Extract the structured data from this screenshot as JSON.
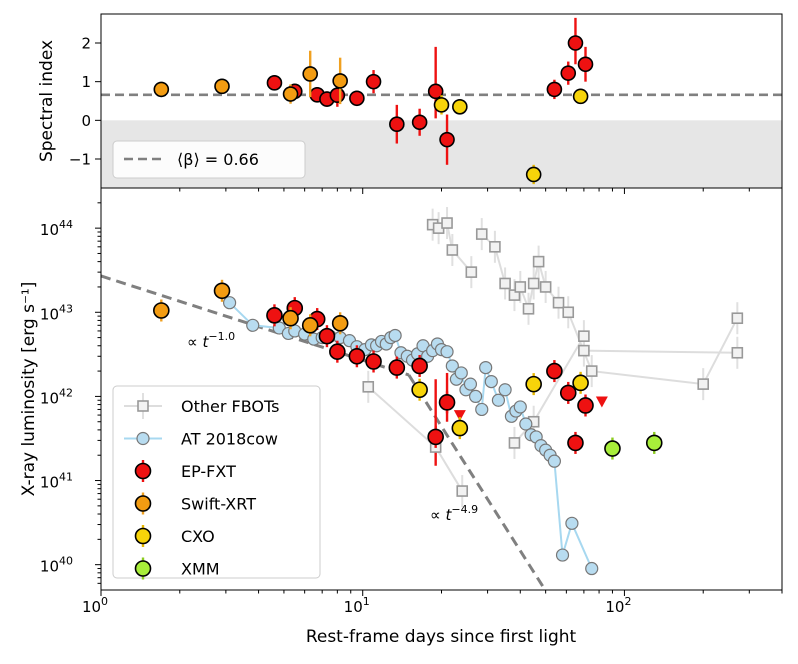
{
  "chart_data": [
    {
      "type": "scatter",
      "panel": "top",
      "ylabel": "Spectral index",
      "xscale": "log",
      "xlim": [
        1,
        400
      ],
      "ylim": [
        -1.75,
        2.75
      ],
      "yticks": [
        -1,
        0,
        1,
        2
      ],
      "ytick_labels": [
        "−1",
        "0",
        "1",
        "2"
      ],
      "shaded_region": {
        "from": -1.75,
        "to": 0,
        "color": "#e6e6e6"
      },
      "mean_line": {
        "value": 0.66,
        "label": "⟨β⟩ = 0.66",
        "color": "#808080"
      },
      "legend_location": "lower-left",
      "series": [
        {
          "name": "EP-FXT",
          "color": "#ee1111",
          "errcolor": "#ee1111",
          "points": [
            {
              "x": 4.6,
              "y": 0.97,
              "lo": 0.15,
              "hi": 0.15
            },
            {
              "x": 5.5,
              "y": 0.75,
              "lo": 0.15,
              "hi": 0.15
            },
            {
              "x": 6.7,
              "y": 0.66,
              "lo": 0.2,
              "hi": 0.2
            },
            {
              "x": 7.3,
              "y": 0.55,
              "lo": 0.2,
              "hi": 0.2
            },
            {
              "x": 8.0,
              "y": 0.65,
              "lo": 0.3,
              "hi": 0.3
            },
            {
              "x": 9.5,
              "y": 0.57,
              "lo": 0.15,
              "hi": 0.15
            },
            {
              "x": 11.0,
              "y": 1.0,
              "lo": 0.3,
              "hi": 0.3
            },
            {
              "x": 13.5,
              "y": -0.1,
              "lo": 0.5,
              "hi": 0.5
            },
            {
              "x": 16.5,
              "y": -0.05,
              "lo": 0.35,
              "hi": 0.35
            },
            {
              "x": 19.0,
              "y": 0.75,
              "lo": 0.7,
              "hi": 1.15
            },
            {
              "x": 21.0,
              "y": -0.5,
              "lo": 0.65,
              "hi": 0.65
            },
            {
              "x": 54,
              "y": 0.8,
              "lo": 0.25,
              "hi": 0.25
            },
            {
              "x": 61,
              "y": 1.22,
              "lo": 0.3,
              "hi": 0.3
            },
            {
              "x": 65,
              "y": 2.0,
              "lo": 0.55,
              "hi": 0.65
            },
            {
              "x": 71,
              "y": 1.45,
              "lo": 0.45,
              "hi": 0.45
            }
          ]
        },
        {
          "name": "Swift-XRT",
          "color": "#f39c12",
          "errcolor": "#f0a020",
          "points": [
            {
              "x": 1.7,
              "y": 0.8,
              "lo": 0.12,
              "hi": 0.12
            },
            {
              "x": 2.9,
              "y": 0.88,
              "lo": 0.15,
              "hi": 0.15
            },
            {
              "x": 5.3,
              "y": 0.68,
              "lo": 0.25,
              "hi": 0.25
            },
            {
              "x": 6.3,
              "y": 1.2,
              "lo": 0.6,
              "hi": 0.6
            },
            {
              "x": 8.2,
              "y": 1.02,
              "lo": 0.6,
              "hi": 0.6
            }
          ]
        },
        {
          "name": "CXO",
          "color": "#f7d40a",
          "errcolor": "#e8b800",
          "points": [
            {
              "x": 20.0,
              "y": 0.4,
              "lo": 0.25,
              "hi": 0.25
            },
            {
              "x": 23.5,
              "y": 0.35,
              "lo": 0.2,
              "hi": 0.2
            },
            {
              "x": 45,
              "y": -1.4,
              "lo": 0.25,
              "hi": 0.25
            },
            {
              "x": 68,
              "y": 0.62,
              "lo": 0.15,
              "hi": 0.15
            }
          ]
        }
      ]
    },
    {
      "type": "line",
      "panel": "bottom",
      "xlabel": "Rest-frame days since first light",
      "ylabel": "X-ray luminosity [erg s⁻¹]",
      "xscale": "log",
      "yscale": "log",
      "xlim": [
        1,
        400
      ],
      "ylim": [
        5e+39,
        3e+44
      ],
      "xtick_labels": [
        {
          "base": "10",
          "exp": "0",
          "value": 1
        },
        {
          "base": "10",
          "exp": "1",
          "value": 10
        },
        {
          "base": "10",
          "exp": "2",
          "value": 100
        }
      ],
      "ytick_labels": [
        {
          "base": "10",
          "exp": "40",
          "value": 1e+40
        },
        {
          "base": "10",
          "exp": "41",
          "value": 1e+41
        },
        {
          "base": "10",
          "exp": "42",
          "value": 1e+42
        },
        {
          "base": "10",
          "exp": "43",
          "value": 1e+43
        },
        {
          "base": "10",
          "exp": "44",
          "value": 1e+44
        }
      ],
      "annotations": [
        {
          "text": "∝ ",
          "var": "t",
          "exp": "−1.0"
        },
        {
          "text": "∝ ",
          "var": "t",
          "exp": "−4.9"
        }
      ],
      "power_laws": [
        {
          "x": [
            1.0,
            15.0
          ],
          "y": [
            2.7e+43,
            1.8e+42
          ],
          "index": -1.0
        },
        {
          "x": [
            15.0,
            60.0
          ],
          "y": [
            1.8e+42,
            2e+39
          ],
          "index": -4.9
        }
      ],
      "legend_location": "lower-left",
      "series": [
        {
          "name": "Other FBOTs",
          "marker": "square",
          "color": "#999999",
          "line_color": "#dddddd",
          "tracks": [
            [
              [
                10.5,
                1.3e+42
              ],
              [
                19,
                2.5e+41
              ],
              [
                24,
                7.5e+40
              ]
            ],
            [
              [
                18.5,
                1.1e+44
              ],
              [
                19.5,
                1e+44
              ],
              [
                21,
                1.15e+44
              ],
              [
                22,
                5.5e+43
              ],
              [
                26,
                3e+43
              ]
            ],
            [
              [
                28.5,
                8.5e+43
              ],
              [
                32,
                6e+43
              ],
              [
                35,
                2.2e+43
              ],
              [
                38,
                1.6e+43
              ],
              [
                40,
                2e+43
              ],
              [
                43,
                1.1e+43
              ],
              [
                45,
                2.2e+43
              ],
              [
                47,
                4e+43
              ],
              [
                50,
                2e+43
              ],
              [
                56,
                1.3e+43
              ],
              [
                61,
                1e+43
              ],
              [
                75,
                2e+42
              ],
              [
                200,
                1.4e+42
              ],
              [
                270,
                8.5e+42
              ]
            ],
            [
              [
                38,
                2.8e+41
              ],
              [
                45,
                5e+41
              ],
              [
                70,
                5.2e+42
              ],
              [
                70,
                3.5e+42
              ],
              [
                270,
                3.3e+42
              ]
            ]
          ]
        },
        {
          "name": "AT 2018cow",
          "marker": "circle",
          "color": "#b8dcf0",
          "edge": "#555555",
          "line_color": "#a7d8f0",
          "points": [
            [
              3.1,
              1.3e+43
            ],
            [
              3.8,
              7e+42
            ],
            [
              4.8,
              6.5e+42
            ],
            [
              5.2,
              5.6e+42
            ],
            [
              5.5,
              6e+42
            ],
            [
              6.0,
              5.5e+42
            ],
            [
              6.5,
              4.8e+42
            ],
            [
              7.0,
              5e+42
            ],
            [
              7.5,
              5.2e+42
            ],
            [
              8.2,
              5e+42
            ],
            [
              8.9,
              4.6e+42
            ],
            [
              9.5,
              3.9e+42
            ],
            [
              10.2,
              3.6e+42
            ],
            [
              10.8,
              4.1e+42
            ],
            [
              11.3,
              4e+42
            ],
            [
              11.8,
              4.5e+42
            ],
            [
              12.3,
              4.2e+42
            ],
            [
              12.8,
              5e+42
            ],
            [
              13.3,
              5.3e+42
            ],
            [
              14.0,
              3.3e+42
            ],
            [
              14.8,
              3e+42
            ],
            [
              15.5,
              2.7e+42
            ],
            [
              16.2,
              3.2e+42
            ],
            [
              17.0,
              4e+42
            ],
            [
              17.7,
              3e+42
            ],
            [
              18.5,
              3.5e+42
            ],
            [
              19.3,
              4.2e+42
            ],
            [
              20.0,
              3.6e+42
            ],
            [
              21.0,
              3.4e+42
            ],
            [
              22.0,
              2.3e+42
            ],
            [
              22.8,
              1.6e+42
            ],
            [
              23.8,
              1.9e+42
            ],
            [
              24.8,
              1.2e+42
            ],
            [
              25.8,
              1.4e+42
            ],
            [
              27.0,
              1e+42
            ],
            [
              28.5,
              7e+41
            ],
            [
              29.5,
              2.2e+42
            ],
            [
              31,
              1.5e+42
            ],
            [
              33,
              9e+41
            ],
            [
              35,
              1.2e+42
            ],
            [
              37,
              5.8e+41
            ],
            [
              38.5,
              6.7e+41
            ],
            [
              40,
              7.5e+41
            ],
            [
              42,
              4.7e+41
            ],
            [
              44,
              3.5e+41
            ],
            [
              46,
              3.3e+41
            ],
            [
              48,
              2.6e+41
            ],
            [
              50,
              2.3e+41
            ],
            [
              52,
              2e+41
            ],
            [
              54,
              1.7e+41
            ],
            [
              58,
              1.3e+40
            ],
            [
              63,
              3.1e+40
            ],
            [
              75,
              9e+39
            ]
          ]
        },
        {
          "name": "EP-FXT",
          "marker": "circle",
          "color": "#ee1111",
          "errcolor": "#ee1111",
          "points": [
            [
              4.6,
              9.2e+42
            ],
            [
              5.5,
              1.12e+43
            ],
            [
              6.7,
              8.3e+42
            ],
            [
              7.3,
              5.2e+42
            ],
            [
              8.0,
              3.4e+42
            ],
            [
              9.5,
              3e+42
            ],
            [
              11.0,
              2.6e+42
            ],
            [
              13.5,
              2.2e+42
            ],
            [
              16.5,
              2.3e+42
            ],
            [
              19.0,
              3.3e+41
            ],
            [
              21.0,
              8.5e+41
            ],
            [
              54,
              2e+42
            ],
            [
              61,
              1.1e+42
            ],
            [
              65,
              2.8e+41
            ],
            [
              71,
              7.8e+41
            ]
          ],
          "upper_limits": [
            [
              23.5,
              6e+41
            ],
            [
              82,
              8.7e+41
            ]
          ]
        },
        {
          "name": "Swift-XRT",
          "marker": "circle",
          "color": "#f39c12",
          "errcolor": "#f0a020",
          "points": [
            [
              1.7,
              1.05e+43
            ],
            [
              2.9,
              1.8e+43
            ],
            [
              5.3,
              8.5e+42
            ],
            [
              6.3,
              7e+42
            ],
            [
              8.2,
              7.4e+42
            ]
          ]
        },
        {
          "name": "CXO",
          "marker": "circle",
          "color": "#f7d40a",
          "errcolor": "#e8b800",
          "points": [
            [
              16.5,
              1.2e+42
            ],
            [
              23.5,
              4.2e+41
            ],
            [
              45,
              1.4e+42
            ],
            [
              68,
              1.45e+42
            ]
          ]
        },
        {
          "name": "XMM",
          "marker": "circle",
          "color": "#a8ee3a",
          "errcolor": "#8ccc20",
          "points": [
            [
              90,
              2.4e+41
            ],
            [
              130,
              2.8e+41
            ]
          ]
        }
      ]
    }
  ]
}
